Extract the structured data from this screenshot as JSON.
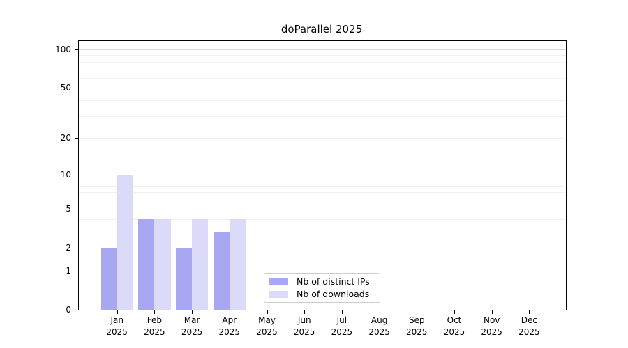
{
  "chart_data": {
    "type": "bar",
    "title": "doParallel 2025",
    "categories": [
      "Jan",
      "Feb",
      "Mar",
      "Apr",
      "May",
      "Jun",
      "Jul",
      "Aug",
      "Sep",
      "Oct",
      "Nov",
      "Dec"
    ],
    "x_year_label": "2025",
    "series": [
      {
        "name": "Nb of distinct IPs",
        "key": "distinct-ips",
        "color": "#a8a8f2",
        "values": [
          2,
          4,
          2,
          3,
          0,
          0,
          0,
          0,
          0,
          0,
          0,
          0
        ]
      },
      {
        "name": "Nb of downloads",
        "key": "downloads",
        "color": "#dbdbf9",
        "values": [
          10,
          4,
          4,
          4,
          0,
          0,
          0,
          0,
          0,
          0,
          0,
          0
        ]
      }
    ],
    "y_scale": "log1p",
    "ylim": [
      0,
      116
    ],
    "y_ticks": [
      0,
      1,
      2,
      5,
      10,
      20,
      50,
      100
    ],
    "grid_major": [
      1,
      10,
      100
    ],
    "grid_minor": [
      2,
      3,
      4,
      5,
      6,
      7,
      8,
      9,
      20,
      30,
      40,
      50,
      60,
      70,
      80,
      90
    ],
    "grid": "horizontal",
    "legend_position": "inside-bottom-center"
  }
}
